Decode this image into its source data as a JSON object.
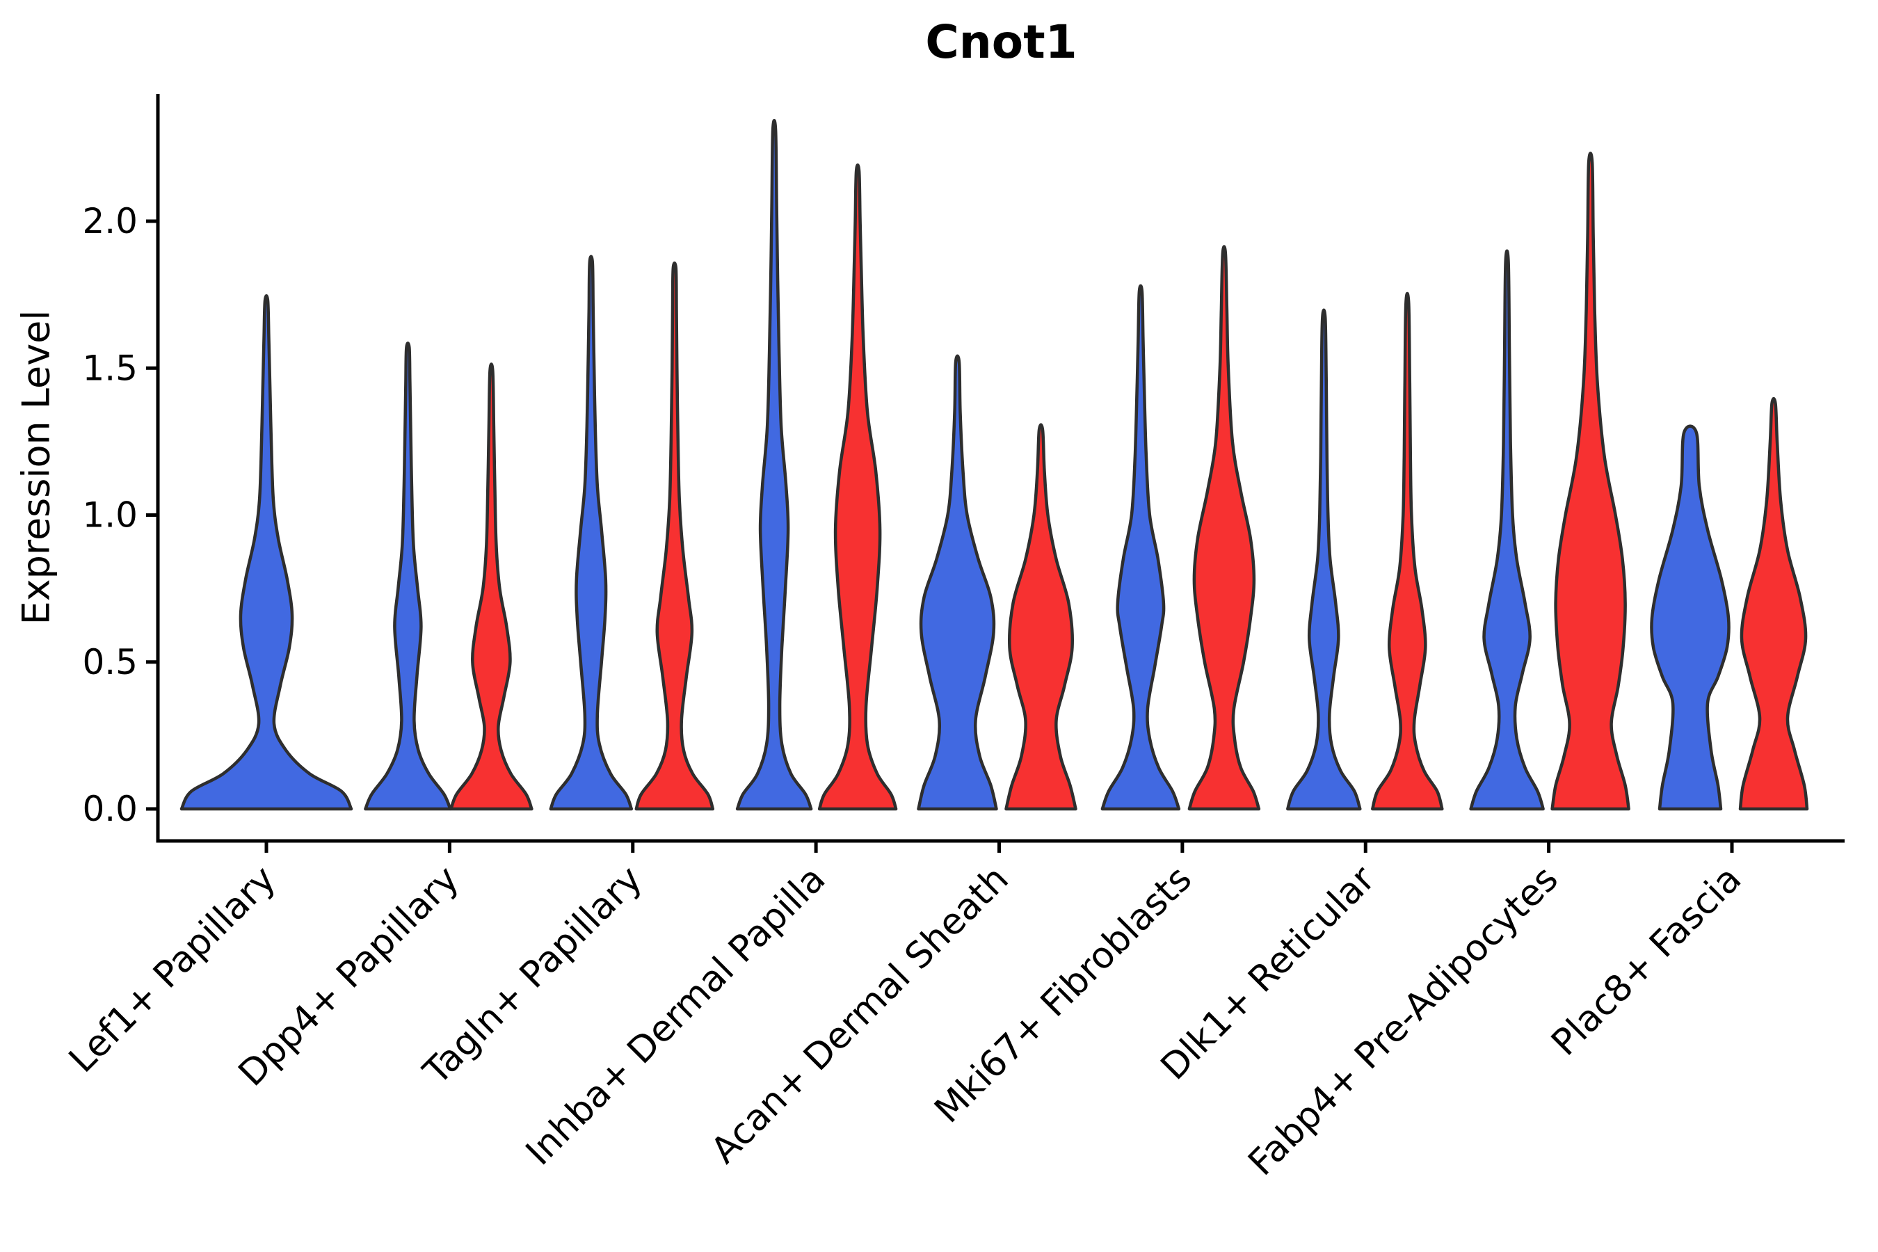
{
  "chart_data": {
    "type": "violin",
    "title": "Cnot1",
    "ylabel": "Expression Level",
    "xlabel": "",
    "ylim": [
      0,
      2.43
    ],
    "yticks": [
      {
        "label": "0.0",
        "value": 0.0
      },
      {
        "label": "0.5",
        "value": 0.5
      },
      {
        "label": "1.0",
        "value": 1.0
      },
      {
        "label": "1.5",
        "value": 1.5
      },
      {
        "label": "2.0",
        "value": 2.0
      }
    ],
    "grid": false,
    "legend": "none",
    "x_tick_rotation_deg": 45,
    "colors": {
      "blue": "#4169E1",
      "red": "#F73131",
      "outline": "#2e2e2e",
      "axis": "#000000"
    },
    "categories": [
      "Lef1+ Papillary",
      "Dpp4+ Papillary",
      "Tagln+ Papillary",
      "Inhba+ Dermal Papilla",
      "Acan+ Dermal Sheath",
      "Mki67+ Fibroblasts",
      "Dlk1+ Reticular",
      "Fabp4+ Pre-Adipocytes",
      "Plac8+ Fascia"
    ],
    "series": [
      {
        "name": "blue",
        "color": "#4169E1",
        "max_expression": [
          1.73,
          1.57,
          1.86,
          2.31,
          1.52,
          1.76,
          1.67,
          1.86,
          1.28
        ]
      },
      {
        "name": "red",
        "color": "#F73131",
        "max_expression": [
          null,
          1.49,
          1.84,
          2.17,
          1.29,
          1.89,
          1.72,
          2.2,
          1.38
        ]
      }
    ],
    "violins": [
      {
        "category": 0,
        "series": "blue",
        "offset": 0,
        "profile": [
          [
            0,
            122
          ],
          [
            0.06,
            108
          ],
          [
            0.12,
            62
          ],
          [
            0.2,
            28
          ],
          [
            0.29,
            11
          ],
          [
            0.42,
            20
          ],
          [
            0.55,
            33
          ],
          [
            0.66,
            37
          ],
          [
            0.78,
            30
          ],
          [
            0.92,
            17
          ],
          [
            1.05,
            10
          ],
          [
            1.25,
            7
          ],
          [
            1.45,
            5
          ],
          [
            1.6,
            3.5
          ],
          [
            1.73,
            2
          ]
        ]
      },
      {
        "category": 1,
        "series": "blue",
        "offset": -60,
        "profile": [
          [
            0,
            61
          ],
          [
            0.05,
            52
          ],
          [
            0.12,
            30
          ],
          [
            0.2,
            15
          ],
          [
            0.3,
            9
          ],
          [
            0.45,
            13
          ],
          [
            0.62,
            19
          ],
          [
            0.75,
            14
          ],
          [
            0.9,
            8
          ],
          [
            1.1,
            5.5
          ],
          [
            1.3,
            4
          ],
          [
            1.45,
            3
          ],
          [
            1.57,
            2
          ]
        ]
      },
      {
        "category": 1,
        "series": "red",
        "offset": 60,
        "profile": [
          [
            0,
            58
          ],
          [
            0.05,
            50
          ],
          [
            0.12,
            28
          ],
          [
            0.2,
            14
          ],
          [
            0.28,
            10
          ],
          [
            0.38,
            18
          ],
          [
            0.5,
            27
          ],
          [
            0.62,
            22
          ],
          [
            0.75,
            12
          ],
          [
            0.9,
            7
          ],
          [
            1.1,
            5
          ],
          [
            1.3,
            3.5
          ],
          [
            1.49,
            2
          ]
        ]
      },
      {
        "category": 2,
        "series": "blue",
        "offset": -60,
        "profile": [
          [
            0,
            58
          ],
          [
            0.05,
            50
          ],
          [
            0.12,
            28
          ],
          [
            0.22,
            12
          ],
          [
            0.32,
            9
          ],
          [
            0.5,
            15
          ],
          [
            0.65,
            20
          ],
          [
            0.78,
            21
          ],
          [
            0.95,
            15
          ],
          [
            1.1,
            9
          ],
          [
            1.3,
            6
          ],
          [
            1.55,
            4
          ],
          [
            1.7,
            3
          ],
          [
            1.86,
            2
          ]
        ]
      },
      {
        "category": 2,
        "series": "red",
        "offset": 60,
        "profile": [
          [
            0,
            55
          ],
          [
            0.05,
            48
          ],
          [
            0.12,
            26
          ],
          [
            0.2,
            13
          ],
          [
            0.3,
            10
          ],
          [
            0.45,
            17
          ],
          [
            0.6,
            25
          ],
          [
            0.72,
            20
          ],
          [
            0.88,
            12
          ],
          [
            1.05,
            7
          ],
          [
            1.25,
            5
          ],
          [
            1.5,
            3.5
          ],
          [
            1.7,
            2.8
          ],
          [
            1.84,
            2
          ]
        ]
      },
      {
        "category": 3,
        "series": "blue",
        "offset": -60,
        "profile": [
          [
            0,
            53
          ],
          [
            0.05,
            45
          ],
          [
            0.12,
            24
          ],
          [
            0.22,
            11
          ],
          [
            0.35,
            8
          ],
          [
            0.55,
            11
          ],
          [
            0.75,
            16
          ],
          [
            0.95,
            20
          ],
          [
            1.1,
            17
          ],
          [
            1.3,
            10
          ],
          [
            1.55,
            7
          ],
          [
            1.8,
            5
          ],
          [
            2.05,
            3.5
          ],
          [
            2.31,
            2
          ]
        ]
      },
      {
        "category": 3,
        "series": "red",
        "offset": 60,
        "profile": [
          [
            0,
            55
          ],
          [
            0.05,
            48
          ],
          [
            0.12,
            28
          ],
          [
            0.22,
            14
          ],
          [
            0.35,
            12
          ],
          [
            0.55,
            20
          ],
          [
            0.75,
            28
          ],
          [
            0.95,
            32
          ],
          [
            1.15,
            26
          ],
          [
            1.35,
            14
          ],
          [
            1.6,
            8
          ],
          [
            1.85,
            5
          ],
          [
            2.0,
            3.5
          ],
          [
            2.17,
            2
          ]
        ]
      },
      {
        "category": 4,
        "series": "blue",
        "offset": -60,
        "profile": [
          [
            0,
            56
          ],
          [
            0.08,
            48
          ],
          [
            0.18,
            32
          ],
          [
            0.3,
            26
          ],
          [
            0.45,
            40
          ],
          [
            0.6,
            52
          ],
          [
            0.72,
            48
          ],
          [
            0.85,
            30
          ],
          [
            1.0,
            14
          ],
          [
            1.15,
            8
          ],
          [
            1.35,
            4
          ],
          [
            1.52,
            2.5
          ]
        ]
      },
      {
        "category": 4,
        "series": "red",
        "offset": 60,
        "profile": [
          [
            0,
            50
          ],
          [
            0.08,
            42
          ],
          [
            0.18,
            28
          ],
          [
            0.3,
            22
          ],
          [
            0.42,
            34
          ],
          [
            0.55,
            45
          ],
          [
            0.7,
            40
          ],
          [
            0.85,
            22
          ],
          [
            1.0,
            10
          ],
          [
            1.15,
            5
          ],
          [
            1.29,
            2.5
          ]
        ]
      },
      {
        "category": 5,
        "series": "blue",
        "offset": -60,
        "profile": [
          [
            0,
            55
          ],
          [
            0.06,
            46
          ],
          [
            0.14,
            26
          ],
          [
            0.24,
            13
          ],
          [
            0.34,
            10
          ],
          [
            0.48,
            20
          ],
          [
            0.62,
            30
          ],
          [
            0.7,
            33
          ],
          [
            0.85,
            25
          ],
          [
            1.0,
            13
          ],
          [
            1.2,
            8
          ],
          [
            1.45,
            5
          ],
          [
            1.6,
            3.5
          ],
          [
            1.76,
            2
          ]
        ]
      },
      {
        "category": 5,
        "series": "red",
        "offset": 60,
        "profile": [
          [
            0,
            50
          ],
          [
            0.06,
            42
          ],
          [
            0.14,
            24
          ],
          [
            0.24,
            15
          ],
          [
            0.34,
            14
          ],
          [
            0.5,
            28
          ],
          [
            0.65,
            38
          ],
          [
            0.78,
            43
          ],
          [
            0.92,
            38
          ],
          [
            1.08,
            24
          ],
          [
            1.25,
            12
          ],
          [
            1.5,
            6
          ],
          [
            1.7,
            4
          ],
          [
            1.89,
            2
          ]
        ]
      },
      {
        "category": 6,
        "series": "blue",
        "offset": -60,
        "profile": [
          [
            0,
            52
          ],
          [
            0.06,
            44
          ],
          [
            0.13,
            24
          ],
          [
            0.22,
            11
          ],
          [
            0.32,
            8
          ],
          [
            0.45,
            14
          ],
          [
            0.58,
            21
          ],
          [
            0.7,
            17
          ],
          [
            0.85,
            9
          ],
          [
            1.0,
            6
          ],
          [
            1.2,
            4.5
          ],
          [
            1.45,
            3.5
          ],
          [
            1.67,
            2
          ]
        ]
      },
      {
        "category": 6,
        "series": "red",
        "offset": 60,
        "profile": [
          [
            0,
            50
          ],
          [
            0.06,
            43
          ],
          [
            0.13,
            24
          ],
          [
            0.22,
            12
          ],
          [
            0.3,
            10
          ],
          [
            0.42,
            18
          ],
          [
            0.55,
            26
          ],
          [
            0.68,
            21
          ],
          [
            0.82,
            11
          ],
          [
            1.0,
            6
          ],
          [
            1.2,
            4.5
          ],
          [
            1.45,
            3.5
          ],
          [
            1.72,
            2
          ]
        ]
      },
      {
        "category": 7,
        "series": "blue",
        "offset": -60,
        "profile": [
          [
            0,
            52
          ],
          [
            0.06,
            44
          ],
          [
            0.14,
            26
          ],
          [
            0.24,
            14
          ],
          [
            0.35,
            12
          ],
          [
            0.46,
            22
          ],
          [
            0.58,
            33
          ],
          [
            0.7,
            26
          ],
          [
            0.85,
            14
          ],
          [
            1.0,
            8
          ],
          [
            1.25,
            5
          ],
          [
            1.55,
            3.5
          ],
          [
            1.86,
            2
          ]
        ]
      },
      {
        "category": 7,
        "series": "red",
        "offset": 60,
        "profile": [
          [
            0,
            55
          ],
          [
            0.08,
            50
          ],
          [
            0.18,
            38
          ],
          [
            0.29,
            30
          ],
          [
            0.42,
            40
          ],
          [
            0.55,
            47
          ],
          [
            0.7,
            50
          ],
          [
            0.85,
            46
          ],
          [
            1.0,
            36
          ],
          [
            1.2,
            20
          ],
          [
            1.45,
            10
          ],
          [
            1.7,
            6
          ],
          [
            1.95,
            4
          ],
          [
            2.2,
            2.5
          ]
        ]
      },
      {
        "category": 8,
        "series": "blue",
        "offset": -60,
        "profile": [
          [
            0,
            44
          ],
          [
            0.08,
            40
          ],
          [
            0.2,
            30
          ],
          [
            0.36,
            25
          ],
          [
            0.45,
            40
          ],
          [
            0.55,
            53
          ],
          [
            0.65,
            55
          ],
          [
            0.78,
            45
          ],
          [
            0.95,
            25
          ],
          [
            1.1,
            13
          ],
          [
            1.28,
            9
          ]
        ]
      },
      {
        "category": 8,
        "series": "red",
        "offset": 60,
        "profile": [
          [
            0,
            48
          ],
          [
            0.08,
            44
          ],
          [
            0.2,
            30
          ],
          [
            0.31,
            20
          ],
          [
            0.45,
            34
          ],
          [
            0.58,
            46
          ],
          [
            0.72,
            38
          ],
          [
            0.88,
            20
          ],
          [
            1.05,
            10
          ],
          [
            1.25,
            5
          ],
          [
            1.38,
            2.5
          ]
        ]
      }
    ]
  }
}
